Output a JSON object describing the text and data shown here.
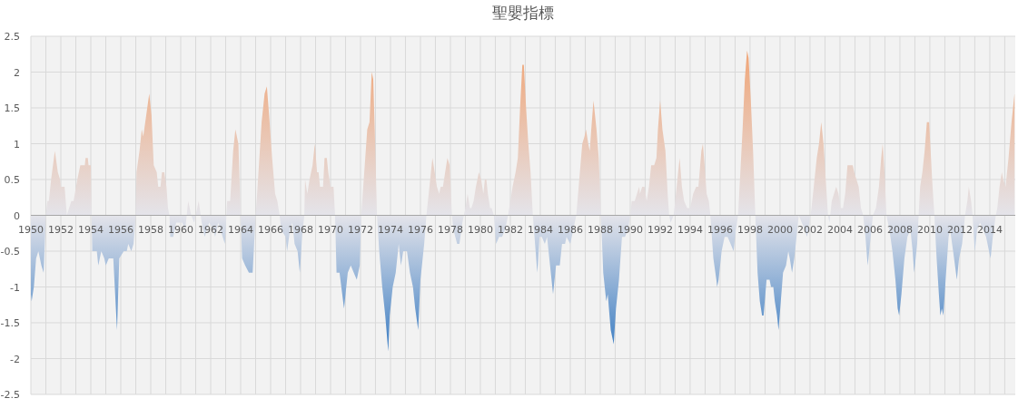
{
  "chart_data": {
    "type": "area",
    "title": "聖嬰指標",
    "color": "#f0a577",
    "grid": true,
    "xlim": [
      1950,
      2015.7
    ],
    "ylim": [
      -2.5,
      2.5
    ],
    "yticks": [
      -2.5,
      -2,
      -1.5,
      -1,
      -0.5,
      0,
      0.5,
      1,
      1.5,
      2,
      2.5
    ],
    "xticks": [
      1950,
      {
        "value": 1951,
        "label": null
      },
      1952,
      {
        "value": 1953,
        "label": null
      },
      1954,
      {
        "value": 1955,
        "label": null
      },
      1956,
      {
        "value": 1957,
        "label": null
      },
      1958,
      {
        "value": 1959,
        "label": null
      },
      1960,
      {
        "value": 1961,
        "label": null
      },
      1962,
      {
        "value": 1963,
        "label": null
      },
      1964,
      {
        "value": 1965,
        "label": null
      },
      1966,
      {
        "value": 1967,
        "label": null
      },
      1968,
      {
        "value": 1969,
        "label": null
      },
      1970,
      {
        "value": 1971,
        "label": null
      },
      1972,
      {
        "value": 1973,
        "label": null
      },
      1974,
      {
        "value": 1975,
        "label": null
      },
      1976,
      {
        "value": 1977,
        "label": null
      },
      1978,
      {
        "value": 1979,
        "label": null
      },
      1980,
      {
        "value": 1981,
        "label": null
      },
      1982,
      {
        "value": 1983,
        "label": null
      },
      1984,
      {
        "value": 1985,
        "label": null
      },
      1986,
      {
        "value": 1987,
        "label": null
      },
      1988,
      {
        "value": 1989,
        "label": null
      },
      1990,
      {
        "value": 1991,
        "label": null
      },
      1992,
      {
        "value": 1993,
        "label": null
      },
      1994,
      {
        "value": 1995,
        "label": null
      },
      1996,
      {
        "value": 1997,
        "label": null
      },
      1998,
      {
        "value": 1999,
        "label": null
      },
      2000,
      {
        "value": 2001,
        "label": null
      },
      2002,
      {
        "value": 2003,
        "label": null
      },
      2004,
      {
        "value": 2005,
        "label": null
      },
      2006,
      {
        "value": 2007,
        "label": null
      },
      2008,
      {
        "value": 2009,
        "label": null
      },
      2010,
      {
        "value": 2011,
        "label": null
      },
      2012,
      {
        "value": 2013,
        "label": null
      },
      2014,
      {
        "value": 2015,
        "label": null
      }
    ],
    "x": [
      1950.0,
      1950.05,
      1950.2,
      1950.35,
      1950.5,
      1950.7,
      1950.85,
      1951.0,
      1951.1,
      1951.2,
      1951.35,
      1951.6,
      1951.8,
      1951.95,
      1952.0,
      1952.25,
      1952.4,
      1952.55,
      1952.7,
      1952.85,
      1953.1,
      1953.3,
      1953.6,
      1953.65,
      1953.8,
      1953.85,
      1954.0,
      1954.05,
      1954.1,
      1954.4,
      1954.5,
      1954.7,
      1954.9,
      1955.0,
      1955.2,
      1955.5,
      1955.75,
      1955.9,
      1956.2,
      1956.4,
      1956.5,
      1956.7,
      1956.85,
      1957.0,
      1957.05,
      1957.25,
      1957.4,
      1957.5,
      1957.7,
      1957.9,
      1958.05,
      1958.2,
      1958.4,
      1958.5,
      1958.65,
      1958.75,
      1958.9,
      1959.05,
      1959.15,
      1959.25,
      1959.3,
      1959.5,
      1959.7,
      1960.1,
      1960.3,
      1960.5,
      1960.7,
      1960.9,
      1961.2,
      1961.4,
      1961.6,
      1961.9,
      1962.2,
      1962.3,
      1962.5,
      1962.8,
      1962.95,
      1963.1,
      1963.3,
      1963.5,
      1963.65,
      1963.85,
      1964.0,
      1964.1,
      1964.3,
      1964.55,
      1964.8,
      1965.0,
      1965.1,
      1965.4,
      1965.6,
      1965.75,
      1965.9,
      1966.1,
      1966.3,
      1966.45,
      1966.6,
      1966.7,
      1967.0,
      1967.1,
      1967.3,
      1967.45,
      1967.6,
      1967.8,
      1967.95,
      1968.1,
      1968.25,
      1968.3,
      1968.45,
      1968.6,
      1968.8,
      1968.95,
      1969.1,
      1969.2,
      1969.3,
      1969.5,
      1969.6,
      1969.75,
      1969.85,
      1970.0,
      1970.2,
      1970.3,
      1970.4,
      1970.6,
      1970.9,
      1971.15,
      1971.35,
      1971.55,
      1971.75,
      1971.95,
      1972.05,
      1972.25,
      1972.45,
      1972.6,
      1972.75,
      1972.85,
      1972.95,
      1973.1,
      1973.25,
      1973.45,
      1973.65,
      1973.85,
      1973.95,
      1974.15,
      1974.35,
      1974.55,
      1974.7,
      1974.85,
      1975.1,
      1975.3,
      1975.5,
      1975.65,
      1975.85,
      1976.0,
      1976.25,
      1976.4,
      1976.6,
      1976.8,
      1976.95,
      1977.1,
      1977.25,
      1977.35,
      1977.5,
      1977.65,
      1977.8,
      1977.95,
      1978.1,
      1978.2,
      1978.45,
      1978.6,
      1978.8,
      1979.0,
      1979.15,
      1979.3,
      1979.4,
      1979.55,
      1979.7,
      1979.9,
      1980.05,
      1980.2,
      1980.3,
      1980.4,
      1980.5,
      1980.65,
      1980.75,
      1980.9,
      1981.05,
      1981.25,
      1981.45,
      1981.65,
      1981.85,
      1982.15,
      1982.35,
      1982.5,
      1982.65,
      1982.8,
      1982.9,
      1983.05,
      1983.2,
      1983.35,
      1983.5,
      1983.65,
      1983.8,
      1983.95,
      1984.1,
      1984.3,
      1984.45,
      1984.65,
      1984.85,
      1985.05,
      1985.3,
      1985.45,
      1985.65,
      1985.75,
      1986.0,
      1986.2,
      1986.4,
      1986.6,
      1986.8,
      1986.95,
      1987.05,
      1987.2,
      1987.3,
      1987.4,
      1987.55,
      1987.75,
      1987.9,
      1988.05,
      1988.2,
      1988.4,
      1988.5,
      1988.7,
      1988.9,
      1989.05,
      1989.25,
      1989.45,
      1989.65,
      1989.85,
      1990.0,
      1990.1,
      1990.3,
      1990.45,
      1990.6,
      1990.65,
      1990.8,
      1990.95,
      1991.1,
      1991.25,
      1991.4,
      1991.6,
      1991.75,
      1991.85,
      1992.0,
      1992.15,
      1992.35,
      1992.5,
      1992.6,
      1992.7,
      1992.9,
      1993.0,
      1993.2,
      1993.3,
      1993.45,
      1993.6,
      1993.8,
      1994.0,
      1994.2,
      1994.4,
      1994.55,
      1994.75,
      1994.85,
      1995.0,
      1995.1,
      1995.25,
      1995.35,
      1995.55,
      1995.75,
      1995.8,
      1995.9,
      1996.1,
      1996.3,
      1996.5,
      1996.7,
      1996.9,
      1997.05,
      1997.2,
      1997.35,
      1997.5,
      1997.65,
      1997.8,
      1997.9,
      1998.05,
      1998.2,
      1998.35,
      1998.5,
      1998.65,
      1998.8,
      1998.9,
      1999.1,
      1999.3,
      1999.4,
      1999.55,
      1999.65,
      1999.8,
      1999.9,
      2000.05,
      2000.2,
      2000.4,
      2000.55,
      2000.65,
      2000.8,
      2000.95,
      2001.05,
      2001.25,
      2001.45,
      2001.65,
      2001.8,
      2001.95,
      2002.1,
      2002.25,
      2002.45,
      2002.6,
      2002.75,
      2002.9,
      2003.05,
      2003.2,
      2003.3,
      2003.45,
      2003.6,
      2003.75,
      2003.9,
      2004.05,
      2004.2,
      2004.35,
      2004.5,
      2004.85,
      2004.95,
      2005.1,
      2005.25,
      2005.4,
      2005.55,
      2005.7,
      2005.85,
      2006.05,
      2006.2,
      2006.4,
      2006.6,
      2006.75,
      2006.85,
      2007.0,
      2007.1,
      2007.3,
      2007.5,
      2007.7,
      2007.85,
      2007.95,
      2008.1,
      2008.3,
      2008.5,
      2008.7,
      2008.85,
      2008.95,
      2009.15,
      2009.25,
      2009.35,
      2009.5,
      2009.65,
      2009.8,
      2009.95,
      2010.15,
      2010.3,
      2010.45,
      2010.6,
      2010.7,
      2010.8,
      2010.9,
      2011.05,
      2011.25,
      2011.35,
      2011.55,
      2011.8,
      2011.95,
      2012.15,
      2012.35,
      2012.5,
      2012.6,
      2012.75,
      2012.85,
      2013.0,
      2013.15,
      2013.35,
      2013.55,
      2013.75,
      2014.05,
      2014.2,
      2014.4,
      2014.5,
      2014.65,
      2014.8,
      2014.9,
      2015.05,
      2015.25,
      2015.45,
      2015.65
    ],
    "values": [
      -1.1,
      -1.2,
      -1.0,
      -0.6,
      -0.5,
      -0.7,
      -0.8,
      0,
      0.2,
      0.2,
      0.5,
      0.9,
      0.6,
      0.5,
      0.4,
      0.4,
      0,
      0.1,
      0.2,
      0.2,
      0.5,
      0.7,
      0.7,
      0.8,
      0.8,
      0.7,
      0.7,
      0,
      -0.5,
      -0.5,
      -0.7,
      -0.5,
      -0.6,
      -0.7,
      -0.6,
      -0.6,
      -1.6,
      -0.6,
      -0.5,
      -0.5,
      -0.4,
      -0.5,
      -0.4,
      0,
      0.6,
      0.9,
      1.2,
      1.1,
      1.4,
      1.7,
      1.4,
      0.7,
      0.6,
      0.4,
      0.4,
      0.6,
      0.6,
      0.4,
      0.1,
      0,
      -0.3,
      -0.3,
      -0.1,
      -0.1,
      -0.2,
      0.2,
      0,
      -0.1,
      0.2,
      -0.1,
      -0.3,
      -0.1,
      -0.2,
      -0.3,
      -0.1,
      -0.3,
      -0.4,
      0.2,
      0.2,
      0.9,
      1.2,
      1.0,
      0,
      -0.6,
      -0.7,
      -0.8,
      -0.8,
      0,
      0.3,
      1.3,
      1.7,
      1.8,
      1.4,
      0.8,
      0.3,
      0.2,
      0,
      -0.2,
      -0.3,
      -0.5,
      -0.2,
      -0.1,
      -0.4,
      -0.5,
      -0.8,
      -0.3,
      0,
      0.5,
      0.3,
      0.5,
      0.7,
      1.0,
      0.6,
      0.6,
      0.4,
      0.4,
      0.8,
      0.8,
      0.6,
      0.4,
      0.4,
      0,
      -0.8,
      -0.8,
      -1.3,
      -0.8,
      -0.7,
      -0.8,
      -0.9,
      -0.7,
      0,
      0.6,
      1.2,
      1.3,
      2.0,
      1.9,
      1.2,
      0,
      -0.5,
      -1.0,
      -1.4,
      -1.9,
      -1.4,
      -1.0,
      -0.8,
      -0.4,
      -0.7,
      -0.5,
      -0.5,
      -0.8,
      -1.0,
      -1.3,
      -1.6,
      -0.9,
      -0.4,
      0,
      0.4,
      0.8,
      0.6,
      0.4,
      0.3,
      0.4,
      0.4,
      0.6,
      0.8,
      0.7,
      0,
      -0.2,
      -0.4,
      -0.4,
      -0.1,
      0.1,
      0.3,
      0.1,
      0.1,
      0.2,
      0.4,
      0.6,
      0.5,
      0.3,
      0.5,
      0.5,
      0.3,
      0.1,
      0.1,
      0,
      -0.4,
      -0.3,
      -0.3,
      -0.2,
      0,
      0.4,
      0.6,
      0.8,
      1.5,
      2.1,
      2.1,
      1.5,
      1.0,
      0.6,
      0,
      -0.4,
      -0.8,
      -0.3,
      -0.3,
      -0.4,
      -0.3,
      -0.7,
      -1.1,
      -0.7,
      -0.7,
      -0.4,
      -0.4,
      -0.3,
      -0.4,
      -0.2,
      0,
      0.5,
      1.0,
      1.1,
      1.2,
      1.0,
      0.9,
      1.2,
      1.6,
      1.2,
      0.8,
      0,
      -0.8,
      -1.2,
      -1.1,
      -1.6,
      -1.8,
      -1.3,
      -0.9,
      -0.3,
      -0.3,
      -0.2,
      0,
      0.2,
      0.2,
      0.3,
      0.4,
      0.3,
      0.4,
      0.4,
      0.2,
      0.4,
      0.7,
      0.7,
      0.8,
      1.2,
      1.6,
      1.2,
      0.9,
      0.3,
      0,
      -0.1,
      0,
      0.2,
      0.6,
      0.8,
      0.4,
      0.2,
      0.1,
      0.1,
      0.3,
      0.4,
      0.4,
      0.9,
      1.0,
      0.6,
      0.3,
      0.2,
      0,
      -0.6,
      -0.9,
      -1.0,
      -0.9,
      -0.5,
      -0.3,
      -0.3,
      -0.4,
      -0.5,
      -0.2,
      0,
      0.6,
      1.2,
      1.9,
      2.3,
      2.2,
      1.6,
      0.9,
      0,
      -0.8,
      -1.2,
      -1.4,
      -1.4,
      -0.9,
      -0.9,
      -1.0,
      -1.0,
      -1.2,
      -1.4,
      -1.6,
      -1.2,
      -0.8,
      -0.7,
      -0.5,
      -0.6,
      -0.8,
      -0.6,
      -0.4,
      0,
      -0.1,
      -0.2,
      -0.3,
      -0.1,
      0.1,
      0.4,
      0.8,
      1.0,
      1.3,
      1.0,
      0.5,
      0,
      -0.1,
      0.2,
      0.3,
      0.4,
      0.3,
      0.1,
      0.1,
      0.3,
      0.7,
      0.7,
      0.6,
      0.5,
      0.4,
      0.1,
      0,
      -0.3,
      -0.7,
      -0.3,
      0,
      0.1,
      0.4,
      0.8,
      1.0,
      0.5,
      0,
      -0.2,
      -0.5,
      -0.9,
      -1.3,
      -1.4,
      -1.1,
      -0.6,
      -0.3,
      -0.2,
      -0.5,
      -0.8,
      -0.4,
      0,
      0.4,
      0.6,
      0.9,
      1.3,
      1.3,
      0.5,
      0,
      -0.6,
      -1.1,
      -1.4,
      -1.3,
      -1.4,
      -0.9,
      -0.3,
      -0.2,
      -0.5,
      -0.9,
      -0.6,
      -0.4,
      0,
      0.2,
      0.4,
      0.2,
      0,
      -0.5,
      -0.2,
      -0.1,
      -0.2,
      -0.3,
      -0.6,
      -0.3,
      0,
      0.1,
      0.4,
      0.6,
      0.5,
      0.4,
      0.8,
      1.3,
      1.7
    ]
  }
}
